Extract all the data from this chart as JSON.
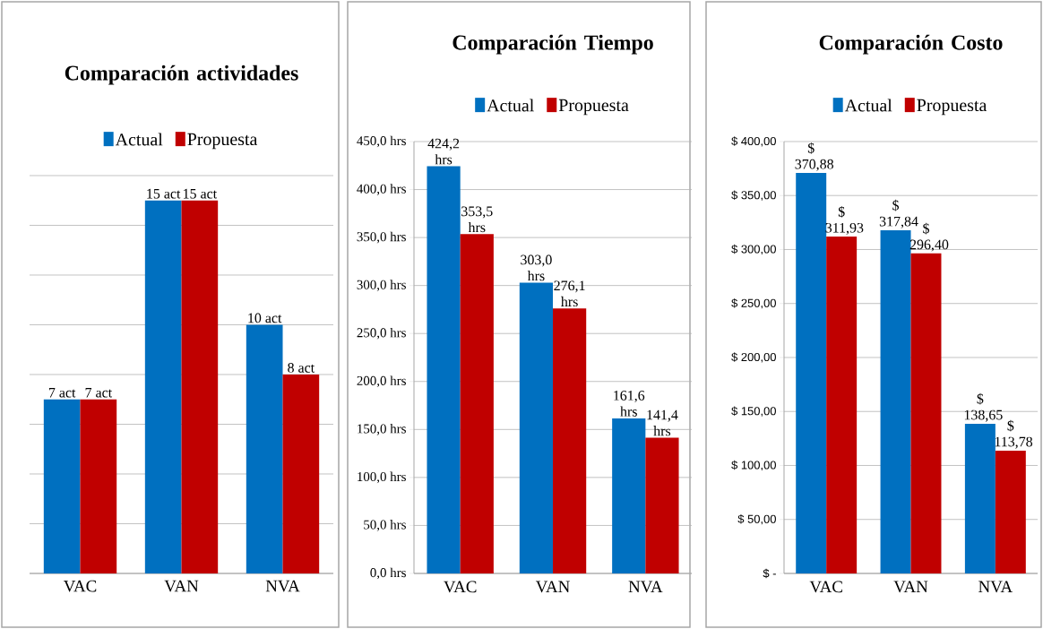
{
  "chart_data": [
    {
      "type": "bar",
      "title": "Comparación actividades",
      "categories": [
        "VAC",
        "VAN",
        "NVA"
      ],
      "ylim": [
        0,
        16
      ],
      "yticks": [
        {
          "value": 0,
          "label": null
        },
        {
          "value": 2,
          "label": null
        },
        {
          "value": 4,
          "label": null
        },
        {
          "value": 6,
          "label": null
        },
        {
          "value": 8,
          "label": null
        },
        {
          "value": 10,
          "label": null
        },
        {
          "value": 12,
          "label": null
        },
        {
          "value": 14,
          "label": null
        },
        {
          "value": 16,
          "label": null
        }
      ],
      "tick_labels": "x",
      "grid": "y",
      "legend": "top",
      "series": [
        {
          "name": "Actual",
          "color": "#0070c0",
          "values": [
            7,
            15,
            10
          ],
          "value_labels": [
            "7 act",
            "15 act",
            "10 act"
          ]
        },
        {
          "name": "Propuesta",
          "color": "#c00000",
          "values": [
            7,
            15,
            8
          ],
          "value_labels": [
            "7 act",
            "15 act",
            "8 act"
          ]
        }
      ]
    },
    {
      "type": "bar",
      "title": "Comparación Tiempo",
      "categories": [
        "VAC",
        "VAN",
        "NVA"
      ],
      "ylim": [
        0,
        450
      ],
      "yticks": [
        {
          "value": 0,
          "label": "0,0 hrs"
        },
        {
          "value": 50,
          "label": "50,0 hrs"
        },
        {
          "value": 100,
          "label": "100,0 hrs"
        },
        {
          "value": 150,
          "label": "150,0 hrs"
        },
        {
          "value": 200,
          "label": "200,0 hrs"
        },
        {
          "value": 250,
          "label": "250,0 hrs"
        },
        {
          "value": 300,
          "label": "300,0 hrs"
        },
        {
          "value": 350,
          "label": "350,0 hrs"
        },
        {
          "value": 400,
          "label": "400,0 hrs"
        },
        {
          "value": 450,
          "label": "450,0 hrs"
        }
      ],
      "grid": "y",
      "legend": "top",
      "series": [
        {
          "name": "Actual",
          "color": "#0070c0",
          "values": [
            424.2,
            303.0,
            161.6
          ],
          "value_labels": [
            "424,2 hrs",
            "303,0 hrs",
            "161,6 hrs"
          ]
        },
        {
          "name": "Propuesta",
          "color": "#c00000",
          "values": [
            353.5,
            276.1,
            141.4
          ],
          "value_labels": [
            "353,5 hrs",
            "276,1 hrs",
            "141,4 hrs"
          ]
        }
      ]
    },
    {
      "type": "bar",
      "title": "Comparación Costo",
      "categories": [
        "VAC",
        "VAN",
        "NVA"
      ],
      "ylim": [
        0,
        400
      ],
      "yticks": [
        {
          "value": 0,
          "label": "$ -"
        },
        {
          "value": 50,
          "label": "$ 50,00"
        },
        {
          "value": 100,
          "label": "$ 100,00"
        },
        {
          "value": 150,
          "label": "$ 150,00"
        },
        {
          "value": 200,
          "label": "$ 200,00"
        },
        {
          "value": 250,
          "label": "$ 250,00"
        },
        {
          "value": 300,
          "label": "$ 300,00"
        },
        {
          "value": 350,
          "label": "$ 350,00"
        },
        {
          "value": 400,
          "label": "$ 400,00"
        }
      ],
      "grid": "y",
      "legend": "top",
      "series": [
        {
          "name": "Actual",
          "color": "#0070c0",
          "values": [
            370.88,
            317.84,
            138.65
          ],
          "value_labels": [
            "$ 370,88",
            "$ 317,84",
            "$ 138,65"
          ]
        },
        {
          "name": "Propuesta",
          "color": "#c00000",
          "values": [
            311.93,
            296.4,
            113.78
          ],
          "value_labels": [
            "$ 311,93",
            "$ 296,40",
            "$ 113,78"
          ]
        }
      ]
    }
  ]
}
